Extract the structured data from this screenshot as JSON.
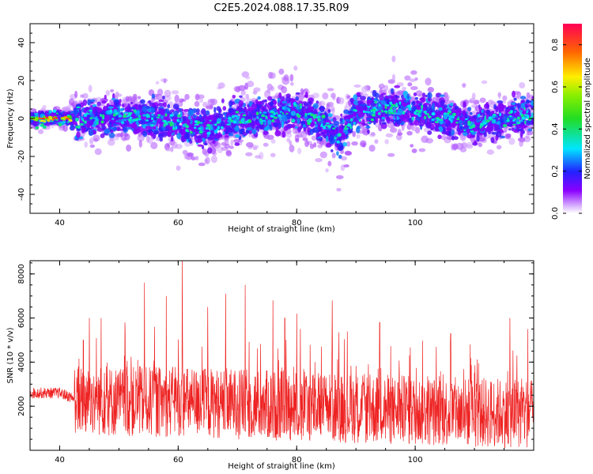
{
  "title": "C2E5.2024.088.17.35.R09",
  "chart_data": [
    {
      "type": "heatmap",
      "xlabel": "Height of straight line (km)",
      "ylabel": "Frequency (Hz)",
      "xlim": [
        35,
        120
      ],
      "ylim": [
        -50,
        50
      ],
      "xticks": [
        40,
        60,
        80,
        100
      ],
      "yticks": [
        -40,
        -20,
        0,
        20,
        40
      ],
      "colorbar": {
        "label": "Normalized spectral amplitude",
        "range": [
          0.0,
          0.9
        ],
        "ticks": [
          0.0,
          0.2,
          0.4,
          0.6,
          0.8
        ]
      },
      "description_profile": {
        "center_frequency_hz": [
          [
            35,
            0
          ],
          [
            40,
            0
          ],
          [
            45,
            0
          ],
          [
            50,
            1
          ],
          [
            55,
            1
          ],
          [
            60,
            -3
          ],
          [
            65,
            -5
          ],
          [
            70,
            0
          ],
          [
            75,
            1
          ],
          [
            78,
            3
          ],
          [
            80,
            4
          ],
          [
            85,
            -3
          ],
          [
            87,
            -10
          ],
          [
            90,
            3
          ],
          [
            95,
            5
          ],
          [
            100,
            5
          ],
          [
            105,
            0
          ],
          [
            110,
            -3
          ],
          [
            115,
            0
          ],
          [
            120,
            2
          ]
        ]
      }
    },
    {
      "type": "line",
      "xlabel": "Height of straight line (km)",
      "ylabel": "SNR (10 * v/v)",
      "xlim": [
        35,
        120
      ],
      "ylim": [
        0,
        8600
      ],
      "xticks": [
        40,
        60,
        80,
        100
      ],
      "yticks": [
        2000,
        4000,
        6000,
        8000
      ],
      "color": "#ee2222",
      "baseline_level": [
        [
          35,
          2600
        ],
        [
          40,
          2600
        ],
        [
          43,
          2300
        ],
        [
          50,
          2200
        ],
        [
          60,
          2200
        ],
        [
          70,
          2100
        ],
        [
          80,
          2000
        ],
        [
          90,
          1900
        ],
        [
          100,
          1800
        ],
        [
          110,
          1700
        ],
        [
          120,
          1700
        ]
      ],
      "peaks": [
        [
          44,
          5000
        ],
        [
          45,
          6000
        ],
        [
          47,
          6000
        ],
        [
          51,
          5800
        ],
        [
          54.3,
          7600
        ],
        [
          56,
          5600
        ],
        [
          58,
          7000
        ],
        [
          60.7,
          8600
        ],
        [
          65,
          6500
        ],
        [
          68,
          7100
        ],
        [
          71.3,
          7500
        ],
        [
          76,
          6800
        ],
        [
          78,
          6000
        ],
        [
          80,
          6200
        ],
        [
          86,
          6800
        ],
        [
          94,
          5800
        ],
        [
          106,
          5300
        ],
        [
          116,
          6000
        ],
        [
          119,
          5500
        ]
      ]
    }
  ]
}
